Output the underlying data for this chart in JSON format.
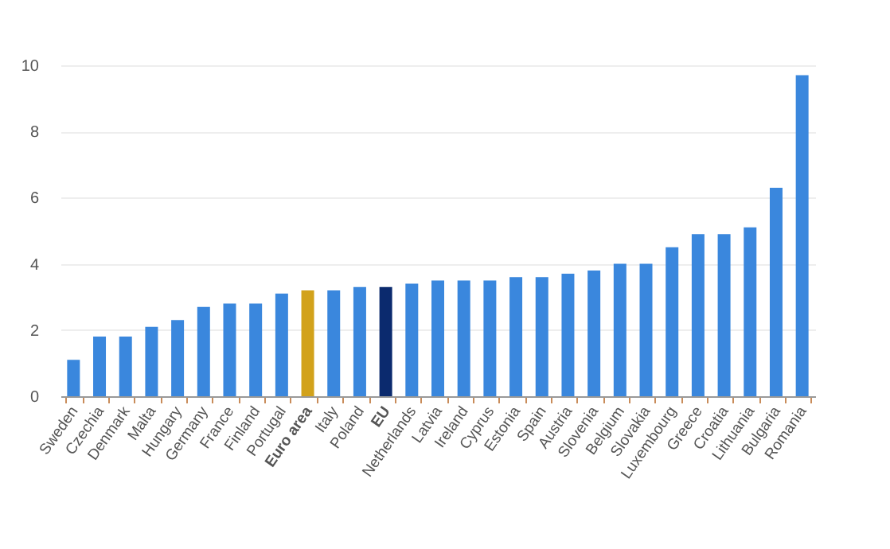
{
  "chart_data": {
    "type": "bar",
    "categories": [
      "Sweden",
      "Czechia",
      "Denmark",
      "Malta",
      "Hungary",
      "Germany",
      "France",
      "Finland",
      "Portugal",
      "Euro area",
      "Italy",
      "Poland",
      "EU",
      "Netherlands",
      "Latvia",
      "Ireland",
      "Cyprus",
      "Estonia",
      "Spain",
      "Austria",
      "Slovenia",
      "Belgium",
      "Slovakia",
      "Luxembourg",
      "Greece",
      "Croatia",
      "Lithuania",
      "Bulgaria",
      "Romania"
    ],
    "values": [
      1.1,
      1.8,
      1.8,
      2.1,
      2.3,
      2.7,
      2.8,
      2.8,
      3.1,
      3.2,
      3.2,
      3.3,
      3.3,
      3.4,
      3.5,
      3.5,
      3.5,
      3.6,
      3.6,
      3.7,
      3.8,
      4.0,
      4.0,
      4.5,
      4.9,
      4.9,
      5.1,
      6.3,
      9.7
    ],
    "colors": [
      "#3a87dd",
      "#3a87dd",
      "#3a87dd",
      "#3a87dd",
      "#3a87dd",
      "#3a87dd",
      "#3a87dd",
      "#3a87dd",
      "#3a87dd",
      "#d2a21b",
      "#3a87dd",
      "#3a87dd",
      "#0b2a6e",
      "#3a87dd",
      "#3a87dd",
      "#3a87dd",
      "#3a87dd",
      "#3a87dd",
      "#3a87dd",
      "#3a87dd",
      "#3a87dd",
      "#3a87dd",
      "#3a87dd",
      "#3a87dd",
      "#3a87dd",
      "#3a87dd",
      "#3a87dd",
      "#3a87dd",
      "#3a87dd"
    ],
    "ylim": [
      0,
      10
    ],
    "yticks": [
      0,
      2,
      4,
      6,
      8,
      10
    ],
    "grid": "y"
  }
}
